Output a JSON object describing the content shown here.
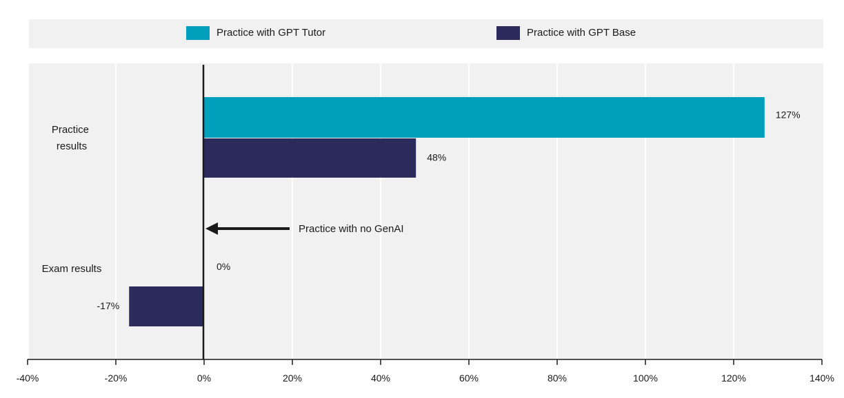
{
  "chart_data": {
    "type": "bar",
    "orientation": "horizontal",
    "categories": [
      "Practice results",
      "Exam results"
    ],
    "category_lines": [
      [
        "Practice",
        "results"
      ],
      [
        "Exam results"
      ]
    ],
    "series": [
      {
        "name": "Practice with GPT Tutor",
        "color": "#00a0bd",
        "values": [
          127,
          0
        ],
        "labels": [
          "127%",
          "0%"
        ]
      },
      {
        "name": "Practice with GPT Base",
        "color": "#2c2b5e",
        "values": [
          48,
          -17
        ],
        "labels": [
          "48%",
          "-17%"
        ]
      }
    ],
    "xlim": [
      -40,
      140
    ],
    "xticks": [
      -40,
      -20,
      0,
      20,
      40,
      60,
      80,
      100,
      120,
      140
    ],
    "xtick_labels": [
      "-40%",
      "-20%",
      "0%",
      "20%",
      "40%",
      "60%",
      "80%",
      "100%",
      "120%",
      "140%"
    ],
    "grid": true,
    "legend_position": "top",
    "annotation": {
      "text": "Practice with no GenAI",
      "points_to": 0
    },
    "colors": {
      "panel": "#f1f1f1",
      "grid": "#ffffff",
      "axis": "#1a1a1a"
    }
  }
}
